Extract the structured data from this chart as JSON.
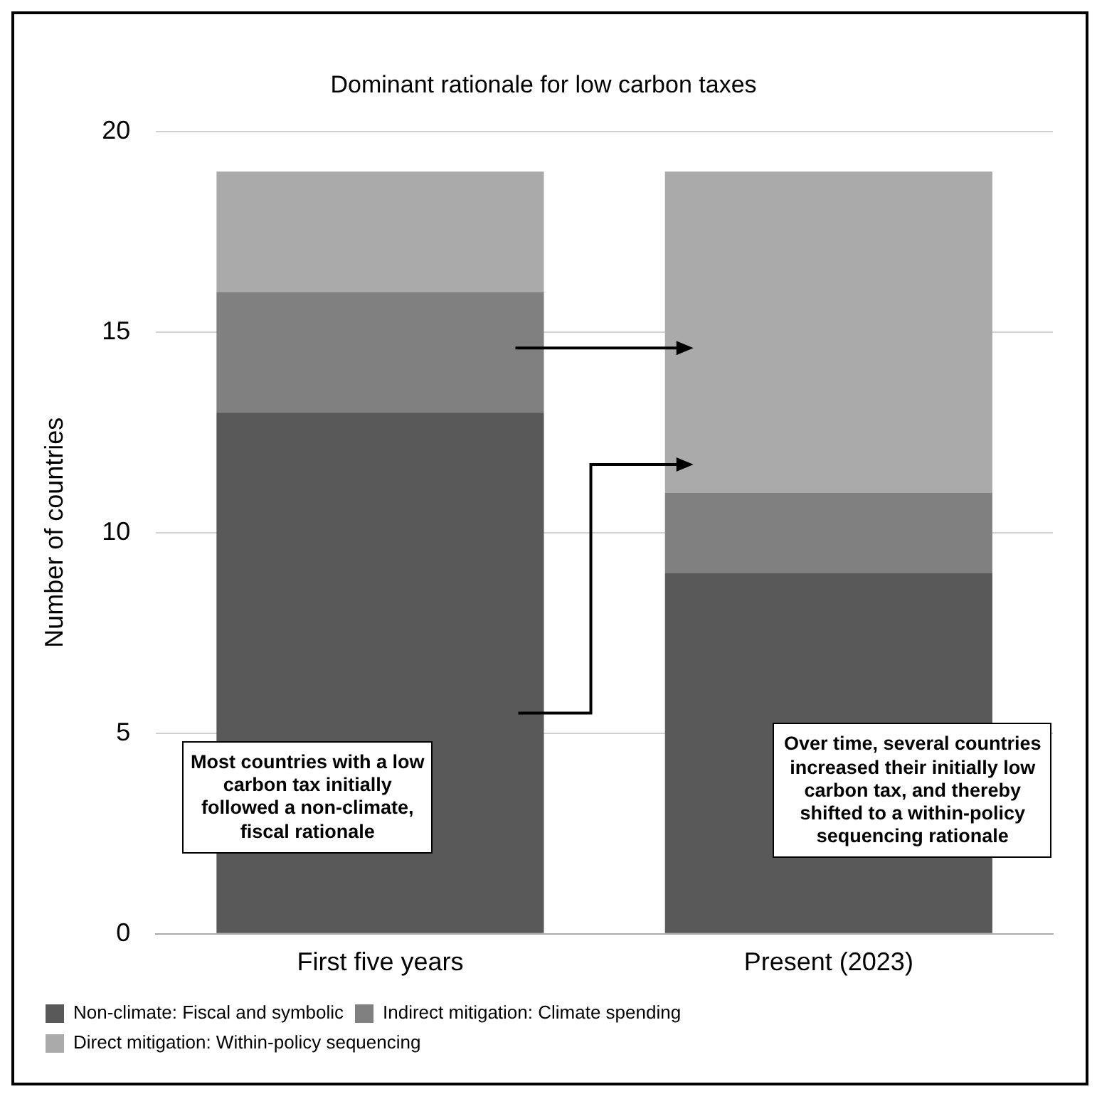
{
  "chart_data": {
    "type": "bar",
    "title": "Dominant rationale for low carbon taxes",
    "ylabel": "Number of countries",
    "categories": [
      "First five years",
      "Present (2023)"
    ],
    "stacked": true,
    "series": [
      {
        "name": "Non-climate: Fiscal and symbolic",
        "color": "#595959",
        "values": [
          13,
          9
        ]
      },
      {
        "name": "Indirect mitigation: Climate spending",
        "color": "#808080",
        "values": [
          3,
          2
        ]
      },
      {
        "name": "Direct mitigation: Within-policy sequencing",
        "color": "#aaaaaa",
        "values": [
          3,
          8
        ]
      }
    ],
    "ylim": [
      0,
      20
    ],
    "yticks": [
      0,
      5,
      10,
      15,
      20
    ],
    "grid": "y",
    "legend": "bottom",
    "annotations": [
      "Most countries with a low carbon tax initially followed a non-climate, fiscal rationale",
      "Over time, several countries increased their initially low carbon tax, and thereby shifted to a within-policy sequencing rationale"
    ]
  }
}
